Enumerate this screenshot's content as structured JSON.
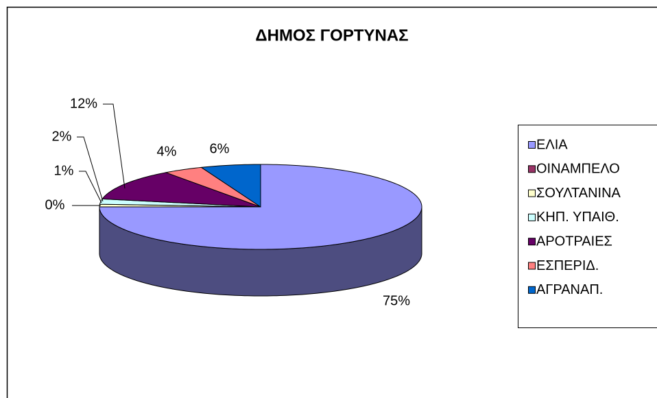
{
  "chart_data": {
    "type": "pie3d",
    "title": "ΔΗΜΟΣ ΓΟΡΤΥΝΑΣ",
    "categories": [
      "ΕΛΙΑ",
      "ΟΙΝΑΜΠΕΛΟ",
      "ΣΟΥΛΤΑΝΙΝΑ",
      "ΚΗΠ. ΥΠΑΙΘ.",
      "ΑΡΟΤΡΑΙΕΣ",
      "ΕΣΠΕΡΙΔ.",
      "ΑΓΡΑΝΑΠ."
    ],
    "values": [
      75,
      0,
      1,
      2,
      12,
      4,
      6
    ],
    "value_labels": [
      "75%",
      "0%",
      "1%",
      "2%",
      "12%",
      "4%",
      "6%"
    ],
    "colors": [
      "#9999ff",
      "#993366",
      "#ffffcc",
      "#ccffff",
      "#660066",
      "#ff8080",
      "#0066cc"
    ],
    "legend": "right"
  }
}
